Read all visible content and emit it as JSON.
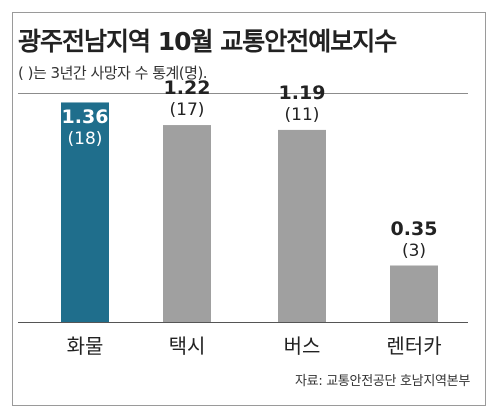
{
  "chart_data": {
    "type": "bar",
    "title": "광주전남지역 10월 교통안전예보지수",
    "subtitle": "( )는 3년간 사망자 수 통계(명).",
    "categories": [
      "화물",
      "택시",
      "버스",
      "렌터카"
    ],
    "values": [
      1.36,
      1.22,
      1.19,
      0.35
    ],
    "value_labels": [
      "1.36",
      "1.22",
      "1.19",
      "0.35"
    ],
    "fatalities_labels": [
      "(18)",
      "(17)",
      "(11)",
      "(3)"
    ],
    "fatalities": [
      18,
      17,
      11,
      3
    ],
    "colors": [
      "#1f6e8c",
      "#a0a0a0",
      "#a0a0a0",
      "#a0a0a0"
    ],
    "highlight_label_color": "#ffffff",
    "label_color": "#222222",
    "xlabel": "",
    "ylabel": "",
    "ylim": [
      0,
      1.4
    ],
    "grid": false,
    "legend": "none",
    "source": "자료: 교통안전공단 호남지역본부"
  }
}
